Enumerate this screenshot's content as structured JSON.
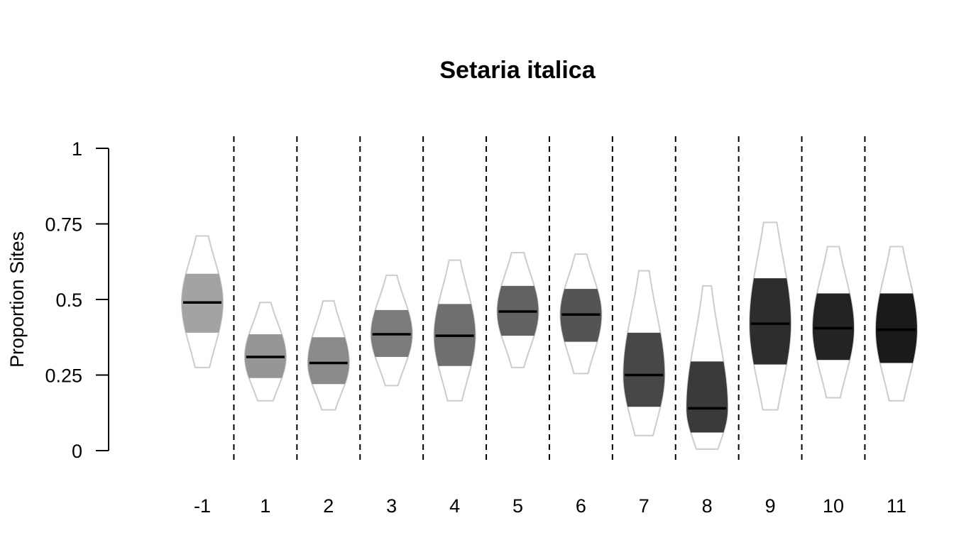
{
  "chart_data": {
    "type": "violin",
    "title": "Setaria italica",
    "ylabel": "Proportion Sites",
    "xlabel": "",
    "ylim": [
      0,
      1
    ],
    "yticks": [
      0,
      0.25,
      0.5,
      0.75,
      1
    ],
    "ytick_labels": [
      "0",
      "0.25",
      "0.5",
      "0.75",
      "1"
    ],
    "categories": [
      "-1",
      "1",
      "2",
      "3",
      "4",
      "5",
      "6",
      "7",
      "8",
      "9",
      "10",
      "11"
    ],
    "median": [
      0.49,
      0.31,
      0.29,
      0.385,
      0.38,
      0.46,
      0.45,
      0.25,
      0.14,
      0.42,
      0.405,
      0.4
    ],
    "q1": [
      0.39,
      0.24,
      0.22,
      0.31,
      0.28,
      0.38,
      0.36,
      0.145,
      0.06,
      0.285,
      0.3,
      0.29
    ],
    "q3": [
      0.585,
      0.385,
      0.375,
      0.465,
      0.485,
      0.545,
      0.535,
      0.39,
      0.295,
      0.57,
      0.52,
      0.52
    ],
    "min": [
      0.275,
      0.165,
      0.135,
      0.215,
      0.165,
      0.275,
      0.255,
      0.05,
      0.005,
      0.135,
      0.175,
      0.165
    ],
    "max": [
      0.71,
      0.49,
      0.495,
      0.58,
      0.63,
      0.655,
      0.65,
      0.595,
      0.545,
      0.755,
      0.675,
      0.675
    ],
    "colors": [
      "#a3a3a3",
      "#969696",
      "#8a8a8a",
      "#7c7c7c",
      "#6f6f6f",
      "#626262",
      "#545454",
      "#474747",
      "#3a3a3a",
      "#2d2d2d",
      "#232323",
      "#1a1a1a"
    ],
    "outline_color": "#cccccc",
    "median_color": "#000000",
    "separators": "dashed",
    "grid": false,
    "legend": "none"
  }
}
